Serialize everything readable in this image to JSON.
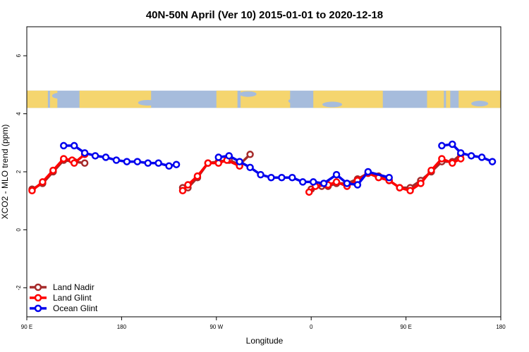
{
  "chart_data": {
    "type": "line",
    "title": "40N-50N April (Ver 10)   2015-01-01 to 2020-12-18",
    "xlabel": "Longitude",
    "ylabel": "XCO2 - MLO trend (ppm)",
    "xlim": [
      90,
      540
    ],
    "ylim": [
      -3,
      7
    ],
    "x_ticks": [
      {
        "value": 90,
        "label": "90 E"
      },
      {
        "value": 180,
        "label": "180"
      },
      {
        "value": 270,
        "label": "90 W"
      },
      {
        "value": 360,
        "label": "0"
      },
      {
        "value": 450,
        "label": "90 E"
      },
      {
        "value": 540,
        "label": "180"
      }
    ],
    "y_ticks": [
      -2,
      0,
      2,
      4,
      6
    ],
    "map_strip": {
      "y_range": [
        4.2,
        4.8
      ],
      "land_color": "#f5d56e",
      "ocean_color": "#a6bcdc"
    },
    "legend_placement": "bottom-left",
    "series": [
      {
        "name": "Land Nadir",
        "color": "#a52a2a",
        "points": [
          [
            95,
            1.4
          ],
          [
            105,
            1.6
          ],
          [
            115,
            2.0
          ],
          [
            125,
            2.4
          ],
          [
            135,
            2.35
          ],
          [
            145,
            2.3
          ],
          [
            238,
            1.45
          ],
          [
            243,
            1.45
          ],
          [
            252,
            1.8
          ],
          [
            262,
            2.3
          ],
          [
            272,
            2.35
          ],
          [
            282,
            2.4
          ],
          [
            292,
            2.25
          ],
          [
            302,
            2.6
          ],
          [
            360,
            1.4
          ],
          [
            370,
            1.5
          ],
          [
            376,
            1.5
          ],
          [
            384,
            1.6
          ],
          [
            394,
            1.6
          ],
          [
            404,
            1.75
          ],
          [
            414,
            1.95
          ],
          [
            424,
            1.85
          ],
          [
            434,
            1.7
          ],
          [
            444,
            1.45
          ],
          [
            454,
            1.45
          ],
          [
            464,
            1.7
          ],
          [
            474,
            2.0
          ],
          [
            484,
            2.35
          ],
          [
            494,
            2.35
          ],
          [
            502,
            2.6
          ]
        ]
      },
      {
        "name": "Land Glint",
        "color": "#ff0000",
        "points": [
          [
            95,
            1.35
          ],
          [
            105,
            1.65
          ],
          [
            115,
            2.05
          ],
          [
            125,
            2.45
          ],
          [
            133,
            2.4
          ],
          [
            135,
            2.3
          ],
          [
            145,
            2.6
          ],
          [
            238,
            1.35
          ],
          [
            243,
            1.55
          ],
          [
            252,
            1.85
          ],
          [
            262,
            2.3
          ],
          [
            272,
            2.3
          ],
          [
            280,
            2.4
          ],
          [
            292,
            2.2
          ],
          [
            358,
            1.3
          ],
          [
            364,
            1.5
          ],
          [
            376,
            1.55
          ],
          [
            384,
            1.65
          ],
          [
            394,
            1.5
          ],
          [
            404,
            1.7
          ],
          [
            414,
            1.95
          ],
          [
            424,
            1.8
          ],
          [
            434,
            1.7
          ],
          [
            444,
            1.45
          ],
          [
            454,
            1.35
          ],
          [
            464,
            1.6
          ],
          [
            474,
            2.05
          ],
          [
            484,
            2.45
          ],
          [
            494,
            2.3
          ],
          [
            502,
            2.45
          ]
        ]
      },
      {
        "name": "Ocean Glint",
        "color": "#0000ee",
        "points": [
          [
            125,
            2.9
          ],
          [
            135,
            2.9
          ],
          [
            145,
            2.65
          ],
          [
            155,
            2.55
          ],
          [
            165,
            2.5
          ],
          [
            175,
            2.4
          ],
          [
            185,
            2.35
          ],
          [
            195,
            2.35
          ],
          [
            205,
            2.3
          ],
          [
            215,
            2.3
          ],
          [
            225,
            2.2
          ],
          [
            232,
            2.25
          ],
          [
            272,
            2.5
          ],
          [
            282,
            2.55
          ],
          [
            292,
            2.35
          ],
          [
            302,
            2.15
          ],
          [
            312,
            1.9
          ],
          [
            322,
            1.8
          ],
          [
            332,
            1.8
          ],
          [
            342,
            1.8
          ],
          [
            352,
            1.65
          ],
          [
            362,
            1.65
          ],
          [
            372,
            1.6
          ],
          [
            384,
            1.9
          ],
          [
            394,
            1.6
          ],
          [
            404,
            1.55
          ],
          [
            414,
            2.0
          ],
          [
            434,
            1.8
          ],
          [
            484,
            2.9
          ],
          [
            494,
            2.95
          ],
          [
            502,
            2.65
          ],
          [
            512,
            2.55
          ],
          [
            522,
            2.5
          ],
          [
            532,
            2.35
          ]
        ]
      }
    ]
  }
}
